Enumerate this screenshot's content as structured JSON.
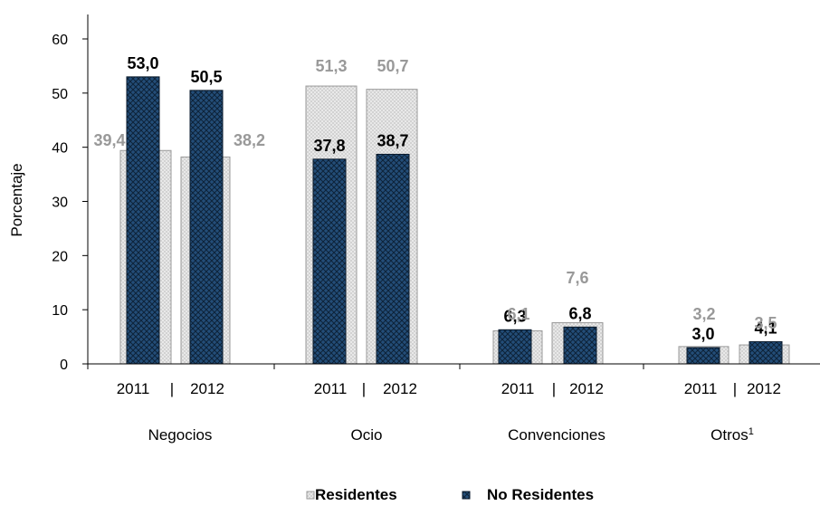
{
  "colors": {
    "residentes": "#e6e6e6",
    "no_residentes": "#1f4e79",
    "residentes_label": "#999999",
    "no_residentes_label": "#000000"
  },
  "chart_data": {
    "type": "bar",
    "ylabel": "Porcentaje",
    "ylim": [
      0,
      60
    ],
    "yticks": [
      "0",
      "10",
      "20",
      "30",
      "40",
      "50",
      "60"
    ],
    "groups": [
      {
        "name": "Negocios",
        "years": [
          "2011",
          "2012"
        ]
      },
      {
        "name": "Ocio",
        "years": [
          "2011",
          "2012"
        ]
      },
      {
        "name": "Convenciones",
        "years": [
          "2011",
          "2012"
        ]
      },
      {
        "name": "Otros",
        "sup": "1",
        "years": [
          "2011",
          "2012"
        ]
      }
    ],
    "series": [
      {
        "name": "Residentes",
        "values": [
          [
            39.4,
            38.2
          ],
          [
            51.3,
            50.7
          ],
          [
            6.1,
            7.6
          ],
          [
            3.2,
            3.5
          ]
        ],
        "labels": [
          [
            "39,4",
            "38,2"
          ],
          [
            "51,3",
            "50,7"
          ],
          [
            "6,1",
            "7,6"
          ],
          [
            "3,2",
            "3,5"
          ]
        ]
      },
      {
        "name": "No Residentes",
        "values": [
          [
            53.0,
            50.5
          ],
          [
            37.8,
            38.7
          ],
          [
            6.3,
            6.8
          ],
          [
            3.0,
            4.1
          ]
        ],
        "labels": [
          [
            "53,0",
            "50,5"
          ],
          [
            "37,8",
            "38,7"
          ],
          [
            "6,3",
            "6,8"
          ],
          [
            "3,0",
            "4,1"
          ]
        ]
      }
    ],
    "separator": "|",
    "legend": "bottom"
  }
}
